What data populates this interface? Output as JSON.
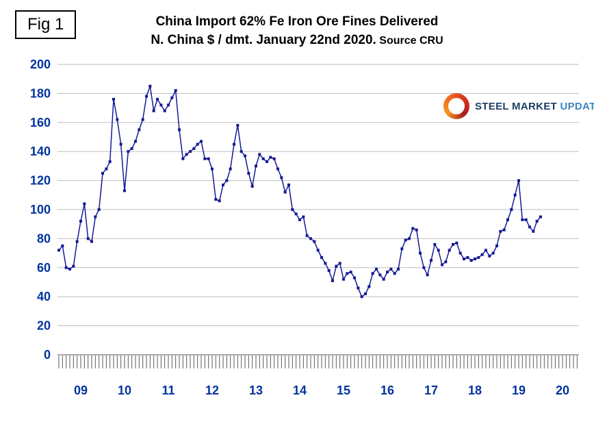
{
  "fig_label": "Fig 1",
  "title": {
    "line1": "China Import 62% Fe Iron Ore Fines Delivered",
    "line2_main": "N. China $ / dmt. January 22nd 2020.",
    "line2_source": " Source CRU"
  },
  "logo": {
    "word1": "STEEL",
    "word2": "MARKET",
    "word3": "UPDATE"
  },
  "chart_data": {
    "type": "line",
    "title": "China Import 62% Fe Iron Ore Fines Delivered N. China $ / dmt. January 22nd 2020. Source CRU",
    "xlabel": "",
    "ylabel": "$ / dmt",
    "x_start_year": 2009,
    "x_months_per_point": 1,
    "x_tick_labels": [
      "09",
      "10",
      "11",
      "12",
      "13",
      "14",
      "15",
      "16",
      "17",
      "18",
      "19",
      "20"
    ],
    "ylim": [
      0,
      200
    ],
    "y_tick_step": 20,
    "grid": true,
    "legend": "none",
    "line_color": "#141996",
    "axis_label_color": "#0033a0",
    "grid_color": "#bdbdbd",
    "axis_line_color": "#5a5a5a",
    "series": [
      {
        "name": "China Import 62% Fe Iron Ore Fines Delivered N. China",
        "values": [
          72,
          75,
          60,
          59,
          61,
          78,
          92,
          104,
          80,
          78,
          95,
          100,
          125,
          128,
          133,
          176,
          162,
          145,
          113,
          140,
          142,
          147,
          155,
          162,
          178,
          185,
          168,
          176,
          172,
          168,
          172,
          177,
          182,
          155,
          135,
          138,
          140,
          142,
          145,
          147,
          135,
          135,
          128,
          107,
          106,
          117,
          120,
          128,
          145,
          158,
          140,
          137,
          125,
          116,
          130,
          138,
          135,
          133,
          136,
          135,
          128,
          122,
          112,
          117,
          100,
          97,
          93,
          95,
          82,
          80,
          78,
          72,
          67,
          63,
          58,
          51,
          61,
          63,
          52,
          56,
          57,
          53,
          46,
          40,
          42,
          47,
          56,
          59,
          55,
          52,
          57,
          59,
          56,
          59,
          73,
          79,
          80,
          87,
          86,
          70,
          60,
          55,
          65,
          76,
          72,
          62,
          64,
          72,
          76,
          77,
          70,
          66,
          67,
          65,
          66,
          67,
          69,
          72,
          68,
          70,
          75,
          85,
          86,
          93,
          100,
          110,
          120,
          93,
          93,
          88,
          85,
          92,
          95
        ]
      }
    ]
  }
}
